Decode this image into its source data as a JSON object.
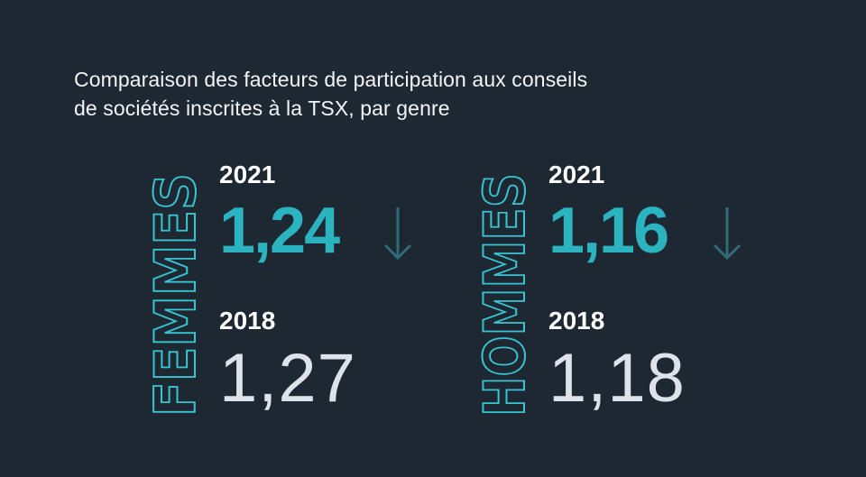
{
  "title": {
    "line1": "Comparaison des facteurs de participation aux conseils",
    "line2": "de sociétés inscrites à la TSX, par genre"
  },
  "groups": [
    {
      "label": "FEMMES",
      "year_current": "2021",
      "value_current": "1,24",
      "trend": "down-arrow-icon",
      "year_prev": "2018",
      "value_prev": "1,27"
    },
    {
      "label": "HOMMES",
      "year_current": "2021",
      "value_current": "1,16",
      "trend": "down-arrow-icon",
      "year_prev": "2018",
      "value_prev": "1,18"
    }
  ],
  "colors": {
    "background": "#1d2833",
    "accent": "#2bb3c0",
    "arrow": "#2e6c77",
    "outline": "#39c4d2",
    "muted": "#dde3e8"
  }
}
